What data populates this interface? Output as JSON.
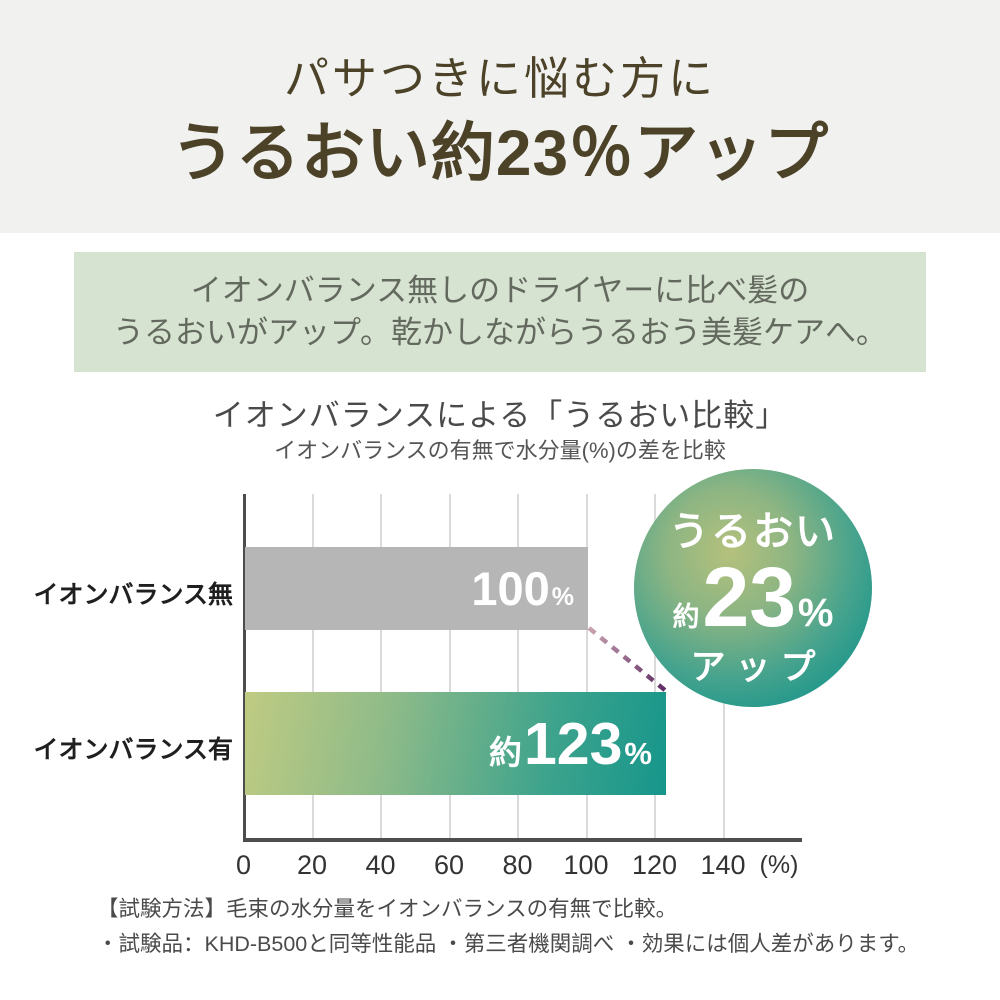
{
  "title": {
    "line1": "パサつきに悩む方に",
    "line2": "うるおい約23％アップ"
  },
  "description_box": {
    "line1": "イオンバランス無しのドライヤーに比べ髪の",
    "line2": "うるおいがアップ。乾かしながらうるおう美髪ケアへ。"
  },
  "chart_header": {
    "title": "イオンバランスによる「うるおい比較」",
    "subtitle": "イオンバランスの有無で水分量(%)の差を比較"
  },
  "badge": {
    "top": "うるおい",
    "prefix": "約",
    "number": "23",
    "unit": "%",
    "bottom": "アップ"
  },
  "notes": {
    "line1": "【試験方法】毛束の水分量をイオンバランスの有無で比較。",
    "line2": "・試験品：KHD-B500と同等性能品 ・第三者機関調べ ・効果には個人差があります。"
  },
  "chart_data": {
    "type": "bar",
    "orientation": "horizontal",
    "title": "イオンバランスによる「うるおい比較」",
    "subtitle": "イオンバランスの有無で水分量(%)の差を比較",
    "categories": [
      "イオンバランス無",
      "イオンバランス有"
    ],
    "values": [
      100,
      123
    ],
    "rows": [
      {
        "category": "イオンバランス無",
        "prefix": "",
        "number": "100",
        "unit": "%",
        "value": 100
      },
      {
        "category": "イオンバランス有",
        "prefix": "約",
        "number": "123",
        "unit": "%",
        "value": 123
      }
    ],
    "x_ticks": [
      "0",
      "20",
      "40",
      "60",
      "80",
      "100",
      "120",
      "140"
    ],
    "x_unit": "(%)",
    "xlim": [
      0,
      163
    ],
    "grid": true,
    "legend": "none",
    "annotation": "うるおい約23%アップ（100%バー先端から約123%バー先端へ破線）",
    "colors": {
      "bar_no_ion": "#b6b6b6",
      "bar_ion_gradient_start": "#bfcb82",
      "bar_ion_gradient_end": "#16968b",
      "badge_center": "#b5c17c",
      "badge_edge": "#0f8b83",
      "connector_start": "#c9a2b2",
      "connector_end": "#5c2a63",
      "title_text": "#4b4228",
      "description_box_bg": "#d6e3d0",
      "top_band_bg": "#f1f1ef",
      "axis": "#4d4d4d",
      "gridline": "#dadada"
    }
  }
}
